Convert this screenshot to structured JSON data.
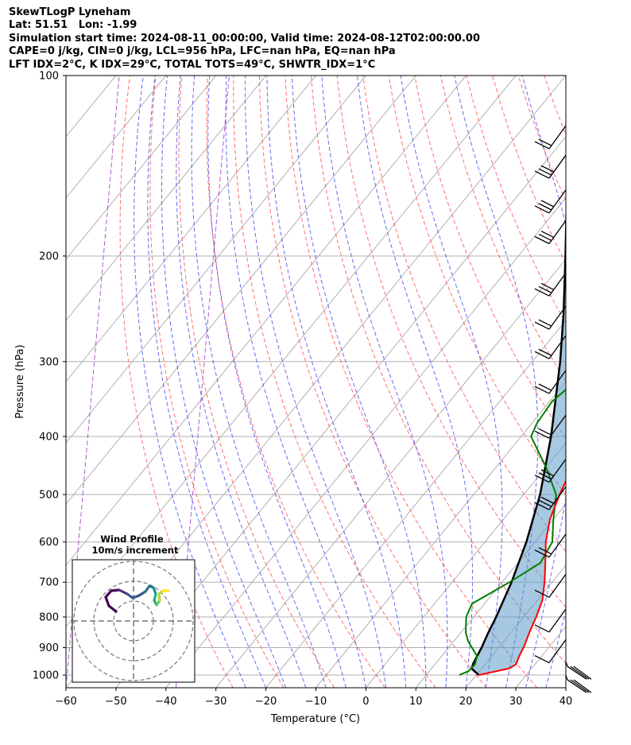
{
  "header_lines": [
    "SkewTLogP Lyneham",
    "Lat: 51.51   Lon: -1.99",
    "Simulation start time: 2024-08-11_00:00:00, Valid time: 2024-08-12T02:00:00.00",
    "CAPE=0 j/kg, CIN=0 j/kg, LCL=956 hPa, LFC=nan hPa, EQ=nan hPa",
    "LFT IDX=2$^\\circ$C, K IDX=29$^\\circ$C, TOTAL TOTS=49$^\\circ$C, SHWTR_IDX=1$^\\circ$C"
  ],
  "chart_data": {
    "type": "line",
    "title": "SkewTLogP Lyneham",
    "xlabel": "Temperature ($^\\circ$C)",
    "ylabel": "Pressure (hPa)",
    "xlim": [
      -60,
      40
    ],
    "ylim": [
      1050,
      100
    ],
    "y_scale": "log",
    "grid": true,
    "xticks": [
      -60,
      -50,
      -40,
      -30,
      -20,
      -10,
      0,
      10,
      20,
      30,
      40
    ],
    "yticks": [
      1000,
      900,
      800,
      700,
      600,
      500,
      400,
      300,
      200,
      100
    ],
    "series": [
      {
        "role": "temperature",
        "color": "#ff0000",
        "points": [
          [
            1000,
            20.5
          ],
          [
            990,
            22.5
          ],
          [
            975,
            25.5
          ],
          [
            960,
            26.2
          ],
          [
            925,
            25.4
          ],
          [
            900,
            25.0
          ],
          [
            850,
            23.7
          ],
          [
            800,
            22.5
          ],
          [
            750,
            21.0
          ],
          [
            700,
            18.5
          ],
          [
            650,
            15.5
          ],
          [
            600,
            12.2
          ],
          [
            550,
            9.3
          ],
          [
            500,
            7.2
          ],
          [
            450,
            5.3
          ],
          [
            400,
            3.3
          ],
          [
            350,
            -0.8
          ],
          [
            300,
            -5.4
          ],
          [
            270,
            -8.2
          ],
          [
            250,
            -10.5
          ],
          [
            235,
            -12.0
          ],
          [
            215,
            -12.2
          ],
          [
            200,
            -11.5
          ],
          [
            180,
            -7.0
          ],
          [
            160,
            -2.2
          ],
          [
            140,
            3.0
          ],
          [
            120,
            10.0
          ],
          [
            100,
            15.0
          ]
        ]
      },
      {
        "role": "dewpoint",
        "color": "#008000",
        "points": [
          [
            1000,
            16.6
          ],
          [
            985,
            17.8
          ],
          [
            960,
            18.0
          ],
          [
            930,
            17.1
          ],
          [
            880,
            13.0
          ],
          [
            850,
            11.0
          ],
          [
            800,
            8.5
          ],
          [
            760,
            7.5
          ],
          [
            700,
            11.5
          ],
          [
            650,
            14.5
          ],
          [
            600,
            13.5
          ],
          [
            550,
            10.0
          ],
          [
            500,
            6.5
          ],
          [
            450,
            0.0
          ],
          [
            400,
            -8.0
          ],
          [
            380,
            -9.0
          ],
          [
            350,
            -9.5
          ],
          [
            330,
            -8.5
          ],
          [
            300,
            -11.0
          ],
          [
            280,
            -10.0
          ],
          [
            260,
            -7.5
          ],
          [
            240,
            -8.0
          ],
          [
            210,
            -11.0
          ],
          [
            190,
            -14.0
          ],
          [
            170,
            -17.5
          ],
          [
            150,
            -19.0
          ],
          [
            130,
            -18.0
          ],
          [
            115,
            -14.5
          ],
          [
            100,
            -10.5
          ]
        ]
      },
      {
        "role": "parcel",
        "color": "#000000",
        "points": [
          [
            1000,
            20.5
          ],
          [
            975,
            18.0
          ],
          [
            956,
            17.5
          ],
          [
            900,
            16.6
          ],
          [
            850,
            15.5
          ],
          [
            800,
            14.5
          ],
          [
            700,
            11.9
          ],
          [
            600,
            8.3
          ],
          [
            500,
            3.3
          ],
          [
            400,
            -4.0
          ],
          [
            300,
            -14.4
          ],
          [
            250,
            -21.5
          ],
          [
            200,
            -30.6
          ],
          [
            150,
            -42.5
          ],
          [
            100,
            -59.7
          ]
        ]
      }
    ],
    "wind_barbs": [
      {
        "pressure": 1000,
        "calm_tail": true
      },
      {
        "pressure": 950,
        "calm_tail": true
      },
      {
        "pressure": 900,
        "flags": 0
      },
      {
        "pressure": 800,
        "flags": 0
      },
      {
        "pressure": 700,
        "flags": 0
      },
      {
        "pressure": 600,
        "flags": 1
      },
      {
        "pressure": 500,
        "flags": 2
      },
      {
        "pressure": 450,
        "flags": 2
      },
      {
        "pressure": 380,
        "flags": 1
      },
      {
        "pressure": 320,
        "flags": 1
      },
      {
        "pressure": 280,
        "flags": 1
      },
      {
        "pressure": 250,
        "flags": 1
      },
      {
        "pressure": 220,
        "flags": 2
      },
      {
        "pressure": 180,
        "flags": 2
      },
      {
        "pressure": 160,
        "flags": 2
      },
      {
        "pressure": 140,
        "flags": 2
      },
      {
        "pressure": 125,
        "flags": 1
      }
    ],
    "inset": {
      "title": "Wind Profile",
      "subtitle": "10m/s increment",
      "rings": 3
    }
  }
}
